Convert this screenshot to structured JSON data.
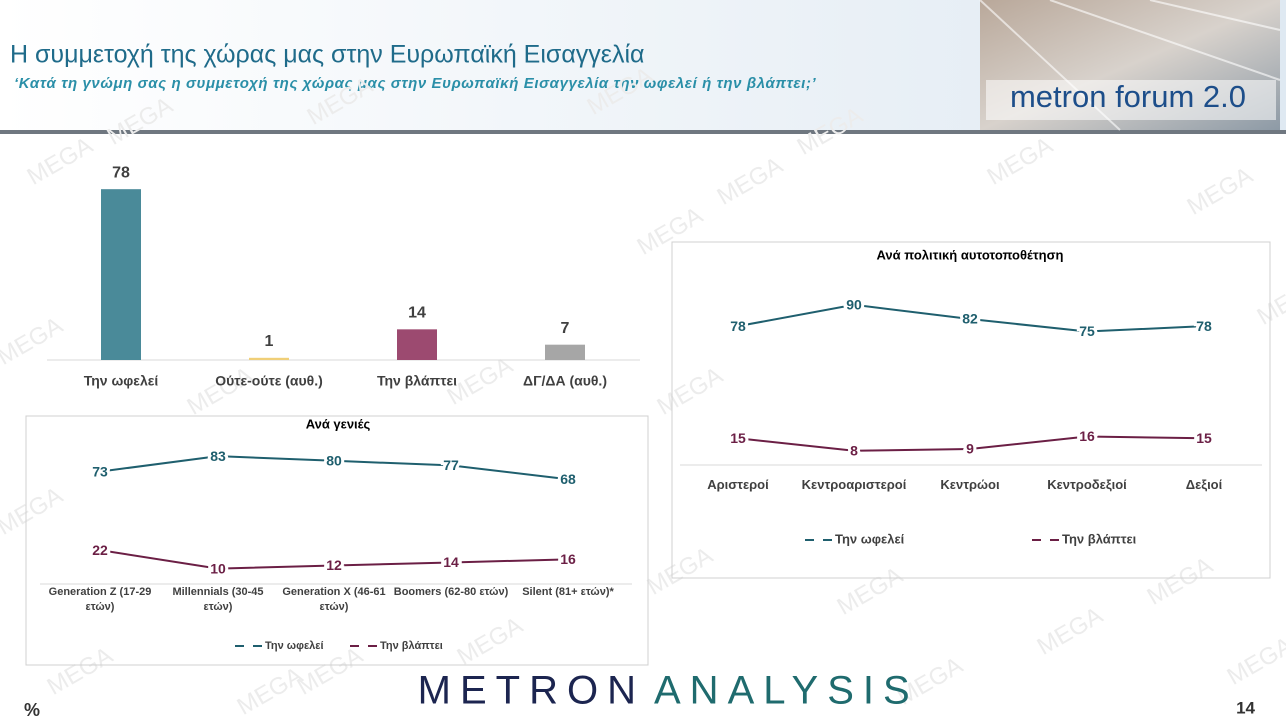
{
  "header": {
    "title": "Η συμμετοχή της χώρας μας στην Ευρωπαϊκή Εισαγγελία",
    "subtitle": "‘Κατά τη γνώμη σας η συμμετοχή της χώρας μας στην Ευρωπαϊκή Εισαγγελία την ωφελεί ή την βλάπτει;’",
    "logo": "metron forum 2.0"
  },
  "chart_data": [
    {
      "type": "bar",
      "categories": [
        "Την ωφελεί",
        "Ούτε-ούτε (αυθ.)",
        "Την βλάπτει",
        "ΔΓ/ΔΑ (αυθ.)"
      ],
      "values": [
        78,
        1,
        14,
        7
      ],
      "colors": [
        "#4a8a99",
        "#f0cf78",
        "#9c4a70",
        "#a6a6a6"
      ]
    },
    {
      "type": "line",
      "title": "Ανά γενιές",
      "categories": [
        "Generation Z (17-29 ετών)",
        "Millennials (30-45 ετών)",
        "Generation X (46-61 ετών)",
        "Boomers (62-80 ετών)",
        "Silent (81+ ετών)*"
      ],
      "series": [
        {
          "name": "Την ωφελεί",
          "color": "#1f5f6e",
          "values": [
            73,
            83,
            80,
            77,
            68
          ]
        },
        {
          "name": "Την βλάπτει",
          "color": "#6b1f45",
          "values": [
            22,
            10,
            12,
            14,
            16
          ]
        }
      ]
    },
    {
      "type": "line",
      "title": "Ανά πολιτική αυτοτοποθέτηση",
      "categories": [
        "Αριστεροί",
        "Κεντροαριστεροί",
        "Κεντρώοι",
        "Κεντροδεξιοί",
        "Δεξιοί"
      ],
      "series": [
        {
          "name": "Την ωφελεί",
          "color": "#1f5f6e",
          "values": [
            78,
            90,
            82,
            75,
            78
          ]
        },
        {
          "name": "Την βλάπτει",
          "color": "#6b1f45",
          "values": [
            15,
            8,
            9,
            16,
            15
          ]
        }
      ]
    }
  ],
  "footer": {
    "brand_left": "METRON",
    "brand_right": "ANALYSIS",
    "unit": "%",
    "page": "14"
  },
  "watermark": "MEGA"
}
